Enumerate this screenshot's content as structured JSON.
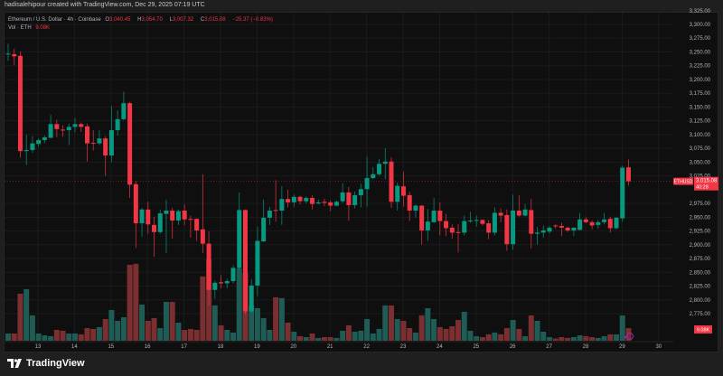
{
  "caption": "hadisalehipour created with TradingView.com, Dec 29, 2025 07:19 UTC",
  "legend": {
    "symbol_desc": "Ethereum / U.S. Dollar · 4h · Coinbase",
    "o_label": "O",
    "o_value": "3,040.45",
    "h_label": "H",
    "h_value": "3,054.70",
    "l_label": "L",
    "l_value": "3,007.32",
    "c_label": "C",
    "c_value": "3,015.08",
    "change": "−25.37 (−0.83%)",
    "vol_label": "Vol · ETH",
    "vol_value": "9.08K"
  },
  "price_label": {
    "symbol": "ETHUSD",
    "price": "3,015.08",
    "countdown": "40:28"
  },
  "volume_label": "9.08K",
  "footer": {
    "brand": "TradingView"
  },
  "colors": {
    "up": "#089981",
    "down": "#f23645",
    "vol_up": "#1e5c55",
    "vol_down": "#7c2f30",
    "background": "#0f0f0f"
  },
  "chart_data": {
    "type": "candlestick",
    "symbol": "ETHUSD",
    "interval": "4h",
    "ylim": [
      2760,
      3330
    ],
    "y_ticks": [
      3325,
      3300,
      3275,
      3250,
      3225,
      3200,
      3175,
      3150,
      3125,
      3100,
      3075,
      3050,
      3025,
      2975,
      2950,
      2925,
      2900,
      2875,
      2850,
      2825,
      2800,
      2775
    ],
    "x_ticks": [
      "13",
      "14",
      "15",
      "16",
      "17",
      "18",
      "19",
      "20",
      "21",
      "22",
      "23",
      "24",
      "25",
      "26",
      "27",
      "28",
      "29",
      "30"
    ],
    "volume_unit": "K",
    "grid": true,
    "columns": [
      "time",
      "open",
      "high",
      "low",
      "close",
      "volume"
    ],
    "candles": [
      [
        "2025-12-12 04:00",
        3246,
        3265,
        3234,
        3247,
        5.2
      ],
      [
        "2025-12-12 08:00",
        3246,
        3256,
        3226,
        3242,
        5.2
      ],
      [
        "2025-12-12 12:00",
        3243,
        3251,
        3058,
        3070,
        33.8
      ],
      [
        "2025-12-12 16:00",
        3070,
        3100,
        3045,
        3072,
        37.1
      ],
      [
        "2025-12-12 20:00",
        3072,
        3097,
        3067,
        3084,
        18.2
      ],
      [
        "2025-12-13 00:00",
        3083,
        3093,
        3078,
        3090,
        5.2
      ],
      [
        "2025-12-13 04:00",
        3090,
        3098,
        3084,
        3095,
        3.9
      ],
      [
        "2025-12-13 08:00",
        3094,
        3136,
        3094,
        3119,
        3.3
      ],
      [
        "2025-12-13 12:00",
        3119,
        3127,
        3095,
        3110,
        7.8
      ],
      [
        "2025-12-13 16:00",
        3109,
        3117,
        3096,
        3108,
        7.2
      ],
      [
        "2025-12-13 20:00",
        3108,
        3120,
        3081,
        3114,
        5.2
      ],
      [
        "2025-12-14 00:00",
        3114,
        3130,
        3104,
        3119,
        5.2
      ],
      [
        "2025-12-14 04:00",
        3119,
        3122,
        3105,
        3114,
        4.6
      ],
      [
        "2025-12-14 08:00",
        3115,
        3120,
        3051,
        3084,
        9.1
      ],
      [
        "2025-12-14 12:00",
        3085,
        3108,
        3071,
        3084,
        8.5
      ],
      [
        "2025-12-14 16:00",
        3084,
        3108,
        3081,
        3093,
        9.8
      ],
      [
        "2025-12-14 20:00",
        3093,
        3097,
        3025,
        3062,
        15.6
      ],
      [
        "2025-12-15 00:00",
        3062,
        3152,
        3050,
        3108,
        22.1
      ],
      [
        "2025-12-15 04:00",
        3108,
        3144,
        3098,
        3128,
        14.3
      ],
      [
        "2025-12-15 08:00",
        3128,
        3178,
        3126,
        3157,
        16.9
      ],
      [
        "2025-12-15 12:00",
        3157,
        3159,
        2985,
        3009,
        54.6
      ],
      [
        "2025-12-15 16:00",
        3010,
        3016,
        2894,
        2939,
        55.3
      ],
      [
        "2025-12-15 20:00",
        2939,
        2967,
        2914,
        2964,
        26.0
      ],
      [
        "2025-12-16 00:00",
        2964,
        2978,
        2920,
        2937,
        14.3
      ],
      [
        "2025-12-16 04:00",
        2936,
        2951,
        2878,
        2923,
        16.3
      ],
      [
        "2025-12-16 08:00",
        2923,
        2964,
        2920,
        2957,
        9.1
      ],
      [
        "2025-12-16 12:00",
        2956,
        2982,
        2885,
        2962,
        27.9
      ],
      [
        "2025-12-16 16:00",
        2962,
        2967,
        2911,
        2944,
        27.9
      ],
      [
        "2025-12-16 20:00",
        2944,
        2964,
        2936,
        2961,
        13.0
      ],
      [
        "2025-12-17 00:00",
        2962,
        2973,
        2936,
        2946,
        7.8
      ],
      [
        "2025-12-17 04:00",
        2947,
        2953,
        2913,
        2946,
        8.5
      ],
      [
        "2025-12-17 08:00",
        2947,
        2948,
        2907,
        2926,
        7.8
      ],
      [
        "2025-12-17 12:00",
        2928,
        3028,
        2885,
        2902,
        46.2
      ],
      [
        "2025-12-17 16:00",
        2902,
        2924,
        2790,
        2818,
        58.5
      ],
      [
        "2025-12-17 20:00",
        2818,
        2835,
        2802,
        2831,
        25.4
      ],
      [
        "2025-12-18 00:00",
        2832,
        2845,
        2821,
        2830,
        11.1
      ],
      [
        "2025-12-18 04:00",
        2830,
        2838,
        2821,
        2834,
        7.8
      ],
      [
        "2025-12-18 08:00",
        2834,
        2863,
        2830,
        2858,
        5.9
      ],
      [
        "2025-12-18 12:00",
        2858,
        2995,
        2855,
        2963,
        52.0
      ],
      [
        "2025-12-18 16:00",
        2963,
        2964,
        2774,
        2779,
        48.8
      ],
      [
        "2025-12-18 20:00",
        2779,
        2837,
        2775,
        2826,
        25.4
      ],
      [
        "2025-12-19 00:00",
        2826,
        2932,
        2807,
        2907,
        23.4
      ],
      [
        "2025-12-19 04:00",
        2906,
        2982,
        2906,
        2949,
        16.3
      ],
      [
        "2025-12-19 08:00",
        2949,
        2969,
        2936,
        2962,
        7.8
      ],
      [
        "2025-12-19 12:00",
        2963,
        3017,
        2942,
        2962,
        31.2
      ],
      [
        "2025-12-19 16:00",
        2962,
        3006,
        2936,
        2983,
        30.6
      ],
      [
        "2025-12-19 20:00",
        2983,
        3000,
        2968,
        2977,
        13.0
      ],
      [
        "2025-12-20 00:00",
        2977,
        2991,
        2969,
        2987,
        6.5
      ],
      [
        "2025-12-20 04:00",
        2987,
        2989,
        2973,
        2979,
        3.3
      ],
      [
        "2025-12-20 08:00",
        2979,
        2988,
        2975,
        2985,
        2.6
      ],
      [
        "2025-12-20 12:00",
        2985,
        2990,
        2964,
        2974,
        5.2
      ],
      [
        "2025-12-20 16:00",
        2975,
        2982,
        2973,
        2977,
        2.0
      ],
      [
        "2025-12-20 20:00",
        2978,
        2984,
        2970,
        2976,
        2.6
      ],
      [
        "2025-12-21 00:00",
        2977,
        2980,
        2961,
        2971,
        2.6
      ],
      [
        "2025-12-21 04:00",
        2971,
        2980,
        2970,
        2978,
        2.0
      ],
      [
        "2025-12-21 08:00",
        2979,
        3012,
        2976,
        2995,
        7.2
      ],
      [
        "2025-12-21 12:00",
        2995,
        3005,
        2943,
        2972,
        11.1
      ],
      [
        "2025-12-21 16:00",
        2972,
        2997,
        2966,
        2990,
        6.5
      ],
      [
        "2025-12-21 20:00",
        2990,
        3011,
        2968,
        3001,
        7.2
      ],
      [
        "2025-12-22 00:00",
        3001,
        3060,
        2969,
        3021,
        15.6
      ],
      [
        "2025-12-22 04:00",
        3021,
        3041,
        3019,
        3028,
        5.2
      ],
      [
        "2025-12-22 08:00",
        3028,
        3056,
        3025,
        3047,
        8.5
      ],
      [
        "2025-12-22 12:00",
        3047,
        3075,
        3019,
        3051,
        25.4
      ],
      [
        "2025-12-22 16:00",
        3051,
        3059,
        2967,
        2978,
        25.4
      ],
      [
        "2025-12-22 20:00",
        2978,
        3013,
        2962,
        3007,
        15.6
      ],
      [
        "2025-12-23 00:00",
        3006,
        3033,
        2969,
        2989,
        14.3
      ],
      [
        "2025-12-23 04:00",
        2990,
        2996,
        2943,
        2962,
        9.1
      ],
      [
        "2025-12-23 08:00",
        2962,
        2973,
        2949,
        2971,
        5.9
      ],
      [
        "2025-12-23 12:00",
        2971,
        2972,
        2900,
        2926,
        18.2
      ],
      [
        "2025-12-23 16:00",
        2926,
        2965,
        2907,
        2942,
        23.4
      ],
      [
        "2025-12-23 20:00",
        2941,
        2985,
        2940,
        2962,
        15.6
      ],
      [
        "2025-12-24 00:00",
        2962,
        2977,
        2917,
        2943,
        9.8
      ],
      [
        "2025-12-24 04:00",
        2943,
        2956,
        2916,
        2930,
        8.5
      ],
      [
        "2025-12-24 08:00",
        2931,
        2937,
        2911,
        2922,
        10.4
      ],
      [
        "2025-12-24 12:00",
        2923,
        2937,
        2886,
        2922,
        14.9
      ],
      [
        "2025-12-24 16:00",
        2922,
        2953,
        2917,
        2943,
        20.8
      ],
      [
        "2025-12-24 20:00",
        2943,
        2960,
        2940,
        2944,
        7.2
      ],
      [
        "2025-12-25 00:00",
        2944,
        2953,
        2933,
        2945,
        3.3
      ],
      [
        "2025-12-25 04:00",
        2945,
        2946,
        2935,
        2938,
        2.6
      ],
      [
        "2025-12-25 08:00",
        2939,
        2945,
        2910,
        2922,
        4.6
      ],
      [
        "2025-12-25 12:00",
        2922,
        2968,
        2917,
        2958,
        5.9
      ],
      [
        "2025-12-25 16:00",
        2958,
        2966,
        2941,
        2953,
        4.6
      ],
      [
        "2025-12-25 20:00",
        2954,
        2964,
        2889,
        2901,
        9.1
      ],
      [
        "2025-12-26 00:00",
        2901,
        2991,
        2891,
        2962,
        14.9
      ],
      [
        "2025-12-26 04:00",
        2962,
        2990,
        2951,
        2953,
        8.5
      ],
      [
        "2025-12-26 08:00",
        2953,
        2974,
        2952,
        2964,
        3.3
      ],
      [
        "2025-12-26 12:00",
        2963,
        2983,
        2893,
        2920,
        18.2
      ],
      [
        "2025-12-26 16:00",
        2920,
        2932,
        2900,
        2922,
        14.3
      ],
      [
        "2025-12-26 20:00",
        2922,
        2935,
        2913,
        2926,
        6.5
      ],
      [
        "2025-12-27 00:00",
        2924,
        2934,
        2920,
        2931,
        2.6
      ],
      [
        "2025-12-27 04:00",
        2935,
        2937,
        2929,
        2934,
        1.6
      ],
      [
        "2025-12-27 08:00",
        2934,
        2940,
        2916,
        2931,
        2.6
      ],
      [
        "2025-12-27 12:00",
        2931,
        2933,
        2923,
        2926,
        2.0
      ],
      [
        "2025-12-27 16:00",
        2926,
        2932,
        2916,
        2931,
        2.6
      ],
      [
        "2025-12-27 20:00",
        2927,
        2958,
        2926,
        2946,
        3.9
      ],
      [
        "2025-12-28 00:00",
        2946,
        2950,
        2939,
        2941,
        3.3
      ],
      [
        "2025-12-28 04:00",
        2941,
        2944,
        2928,
        2935,
        2.6
      ],
      [
        "2025-12-28 08:00",
        2936,
        2945,
        2929,
        2941,
        2.0
      ],
      [
        "2025-12-28 12:00",
        2941,
        2958,
        2937,
        2946,
        3.3
      ],
      [
        "2025-12-28 16:00",
        2947,
        2951,
        2922,
        2930,
        4.6
      ],
      [
        "2025-12-28 20:00",
        2930,
        2951,
        2928,
        2949,
        4.6
      ],
      [
        "2025-12-29 00:00",
        2948,
        3043,
        2942,
        3040,
        18.2
      ],
      [
        "2025-12-29 04:00",
        3040.45,
        3054.7,
        3007.32,
        3015.08,
        9.08
      ]
    ],
    "last_price": 3015.08
  }
}
